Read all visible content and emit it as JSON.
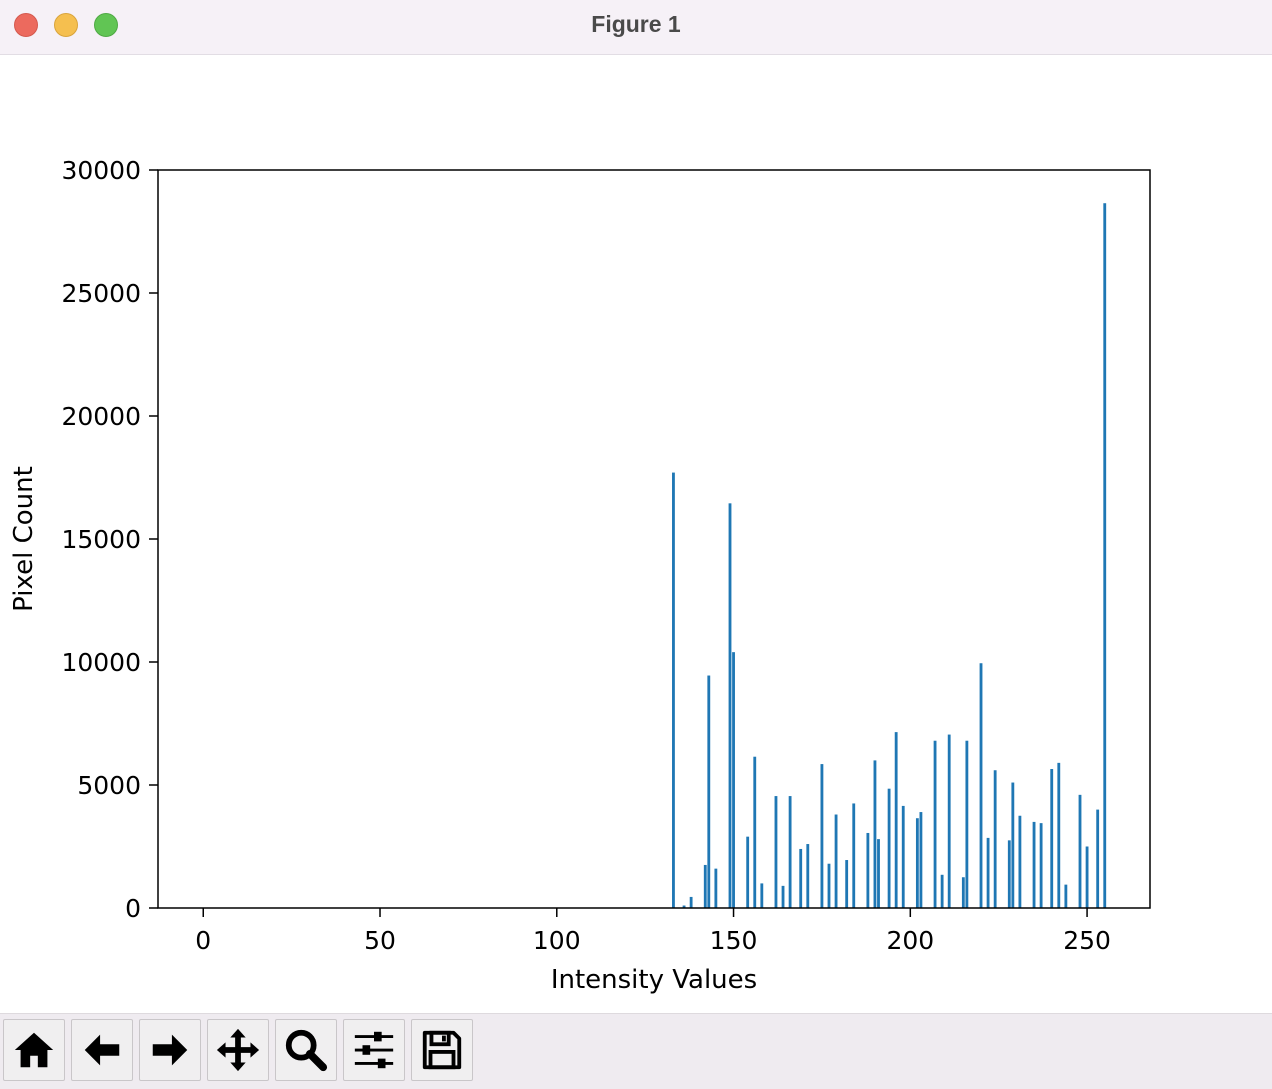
{
  "window": {
    "title": "Figure 1"
  },
  "toolbar": {
    "buttons": [
      {
        "icon": "home-icon"
      },
      {
        "icon": "back-arrow-icon"
      },
      {
        "icon": "forward-arrow-icon"
      },
      {
        "icon": "pan-move-icon"
      },
      {
        "icon": "zoom-magnifier-icon"
      },
      {
        "icon": "configure-subplots-icon"
      },
      {
        "icon": "save-floppy-icon"
      }
    ]
  },
  "chart_data": {
    "type": "bar",
    "title": "",
    "xlabel": "Intensity Values",
    "ylabel": "Pixel Count",
    "xlim": [
      -12.8,
      267.8
    ],
    "ylim": [
      0,
      30000
    ],
    "xticks": [
      0,
      50,
      100,
      150,
      200,
      250
    ],
    "yticks": [
      0,
      5000,
      10000,
      15000,
      20000,
      25000,
      30000
    ],
    "color": "#1f77b4",
    "grid": false,
    "x": [
      133,
      136,
      138,
      142,
      143,
      145,
      149,
      150,
      154,
      156,
      158,
      162,
      164,
      166,
      169,
      171,
      175,
      177,
      179,
      182,
      184,
      188,
      190,
      191,
      194,
      196,
      198,
      202,
      203,
      207,
      209,
      211,
      215,
      216,
      220,
      222,
      224,
      228,
      229,
      231,
      235,
      237,
      240,
      242,
      244,
      248,
      250,
      253,
      255
    ],
    "values": [
      17700,
      100,
      450,
      1750,
      9450,
      1600,
      16450,
      10400,
      2900,
      6150,
      1000,
      4550,
      900,
      4550,
      2400,
      2600,
      5850,
      1800,
      3800,
      1950,
      4250,
      3050,
      6000,
      2800,
      4850,
      7150,
      4150,
      3650,
      3900,
      6800,
      1350,
      7050,
      1250,
      6800,
      9950,
      2850,
      5600,
      2750,
      5100,
      3750,
      3500,
      3450,
      5650,
      5900,
      950,
      4600,
      2500,
      4000,
      28650
    ]
  }
}
